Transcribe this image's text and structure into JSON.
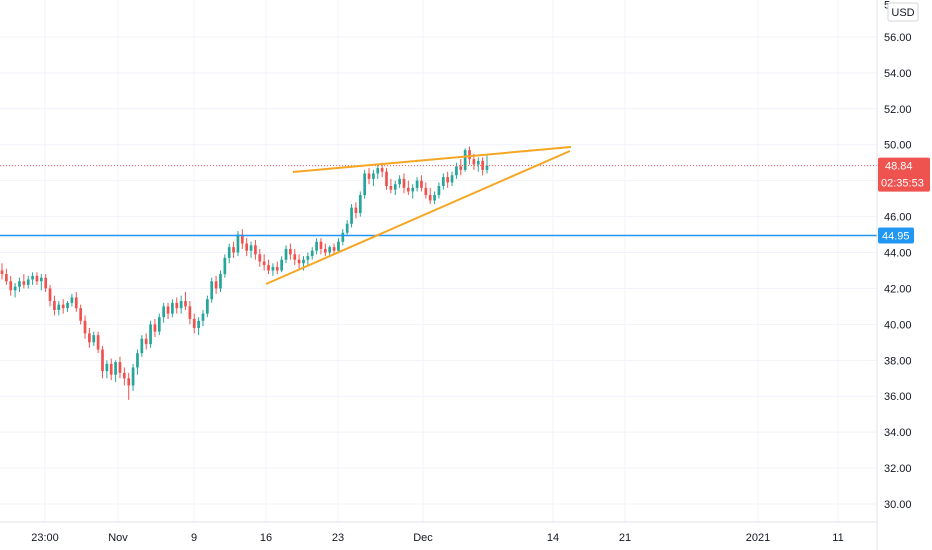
{
  "chart_data": {
    "type": "candlestick",
    "currency": "USD",
    "yaxis": {
      "min": 29,
      "max": 57.5,
      "ticks": [
        "56.00",
        "54.00",
        "52.00",
        "50.00",
        "48.00",
        "46.00",
        "44.00",
        "42.00",
        "40.00",
        "38.00",
        "36.00",
        "34.00",
        "32.00",
        "30.00"
      ],
      "top_partial_label": "5"
    },
    "xaxis": {
      "ticks": [
        "23:00",
        "Nov",
        "9",
        "16",
        "23",
        "Dec",
        "14",
        "21",
        "2021",
        "11"
      ]
    },
    "grid": true,
    "last_price": "48.84",
    "countdown": "02:35:53",
    "horizontal_level": "44.95",
    "colors": {
      "up": "#26a69a",
      "down": "#ef5350",
      "level_line": "#2196f3",
      "level_badge": "#2196f3",
      "price_badge": "#ef5350",
      "trendline": "#f5a623",
      "grid": "#f0f3fa"
    },
    "candles": [
      {
        "o": 43.0,
        "h": 43.4,
        "l": 42.5,
        "c": 42.8
      },
      {
        "o": 42.8,
        "h": 43.1,
        "l": 42.2,
        "c": 42.4
      },
      {
        "o": 42.4,
        "h": 42.7,
        "l": 41.6,
        "c": 41.9
      },
      {
        "o": 41.9,
        "h": 42.3,
        "l": 41.5,
        "c": 42.1
      },
      {
        "o": 42.1,
        "h": 42.6,
        "l": 41.8,
        "c": 42.4
      },
      {
        "o": 42.4,
        "h": 42.8,
        "l": 42.0,
        "c": 42.2
      },
      {
        "o": 42.2,
        "h": 42.7,
        "l": 42.0,
        "c": 42.5
      },
      {
        "o": 42.5,
        "h": 42.9,
        "l": 42.2,
        "c": 42.7
      },
      {
        "o": 42.7,
        "h": 42.9,
        "l": 42.2,
        "c": 42.4
      },
      {
        "o": 42.4,
        "h": 42.8,
        "l": 41.9,
        "c": 42.6
      },
      {
        "o": 42.6,
        "h": 42.8,
        "l": 41.8,
        "c": 42.0
      },
      {
        "o": 42.0,
        "h": 42.2,
        "l": 41.0,
        "c": 41.3
      },
      {
        "o": 41.3,
        "h": 41.6,
        "l": 40.5,
        "c": 40.8
      },
      {
        "o": 40.8,
        "h": 41.3,
        "l": 40.5,
        "c": 41.1
      },
      {
        "o": 41.1,
        "h": 41.4,
        "l": 40.6,
        "c": 40.9
      },
      {
        "o": 40.9,
        "h": 41.3,
        "l": 40.7,
        "c": 41.2
      },
      {
        "o": 41.2,
        "h": 41.7,
        "l": 41.0,
        "c": 41.5
      },
      {
        "o": 41.5,
        "h": 41.8,
        "l": 40.7,
        "c": 40.9
      },
      {
        "o": 40.9,
        "h": 41.1,
        "l": 40.0,
        "c": 40.2
      },
      {
        "o": 40.2,
        "h": 40.5,
        "l": 39.2,
        "c": 39.5
      },
      {
        "o": 39.5,
        "h": 39.8,
        "l": 38.7,
        "c": 39.0
      },
      {
        "o": 39.0,
        "h": 39.6,
        "l": 38.8,
        "c": 39.4
      },
      {
        "o": 39.4,
        "h": 39.6,
        "l": 38.4,
        "c": 38.6
      },
      {
        "o": 38.6,
        "h": 38.8,
        "l": 37.0,
        "c": 37.4
      },
      {
        "o": 37.4,
        "h": 38.0,
        "l": 37.0,
        "c": 37.8
      },
      {
        "o": 37.8,
        "h": 38.1,
        "l": 36.9,
        "c": 37.2
      },
      {
        "o": 37.2,
        "h": 38.0,
        "l": 36.8,
        "c": 37.9
      },
      {
        "o": 37.9,
        "h": 38.2,
        "l": 37.0,
        "c": 37.3
      },
      {
        "o": 37.3,
        "h": 37.6,
        "l": 36.6,
        "c": 37.0
      },
      {
        "o": 37.0,
        "h": 37.3,
        "l": 35.8,
        "c": 36.6
      },
      {
        "o": 36.6,
        "h": 37.8,
        "l": 36.3,
        "c": 37.6
      },
      {
        "o": 37.6,
        "h": 38.6,
        "l": 37.2,
        "c": 38.4
      },
      {
        "o": 38.4,
        "h": 39.4,
        "l": 38.2,
        "c": 39.2
      },
      {
        "o": 39.2,
        "h": 39.5,
        "l": 38.6,
        "c": 38.9
      },
      {
        "o": 38.9,
        "h": 40.2,
        "l": 38.7,
        "c": 40.0
      },
      {
        "o": 40.0,
        "h": 40.3,
        "l": 39.3,
        "c": 39.6
      },
      {
        "o": 39.6,
        "h": 40.6,
        "l": 39.4,
        "c": 40.4
      },
      {
        "o": 40.4,
        "h": 41.2,
        "l": 40.1,
        "c": 41.0
      },
      {
        "o": 41.0,
        "h": 41.2,
        "l": 40.3,
        "c": 40.6
      },
      {
        "o": 40.6,
        "h": 41.4,
        "l": 40.4,
        "c": 41.2
      },
      {
        "o": 41.2,
        "h": 41.5,
        "l": 40.6,
        "c": 40.9
      },
      {
        "o": 40.9,
        "h": 41.6,
        "l": 40.6,
        "c": 41.3
      },
      {
        "o": 41.3,
        "h": 41.8,
        "l": 40.8,
        "c": 41.0
      },
      {
        "o": 41.0,
        "h": 41.3,
        "l": 40.0,
        "c": 40.3
      },
      {
        "o": 40.3,
        "h": 40.6,
        "l": 39.5,
        "c": 39.8
      },
      {
        "o": 39.8,
        "h": 40.4,
        "l": 39.4,
        "c": 40.2
      },
      {
        "o": 40.2,
        "h": 40.8,
        "l": 39.9,
        "c": 40.6
      },
      {
        "o": 40.6,
        "h": 41.6,
        "l": 40.4,
        "c": 41.4
      },
      {
        "o": 41.4,
        "h": 42.6,
        "l": 41.2,
        "c": 42.4
      },
      {
        "o": 42.4,
        "h": 42.7,
        "l": 41.7,
        "c": 42.0
      },
      {
        "o": 42.0,
        "h": 43.0,
        "l": 41.8,
        "c": 42.8
      },
      {
        "o": 42.8,
        "h": 43.9,
        "l": 42.6,
        "c": 43.7
      },
      {
        "o": 43.7,
        "h": 44.5,
        "l": 43.4,
        "c": 44.3
      },
      {
        "o": 44.3,
        "h": 44.6,
        "l": 43.7,
        "c": 44.0
      },
      {
        "o": 44.0,
        "h": 45.2,
        "l": 43.8,
        "c": 45.0
      },
      {
        "o": 45.0,
        "h": 45.3,
        "l": 44.2,
        "c": 44.5
      },
      {
        "o": 44.5,
        "h": 44.8,
        "l": 43.8,
        "c": 44.1
      },
      {
        "o": 44.1,
        "h": 44.6,
        "l": 43.7,
        "c": 44.4
      },
      {
        "o": 44.4,
        "h": 44.7,
        "l": 43.6,
        "c": 43.9
      },
      {
        "o": 43.9,
        "h": 44.2,
        "l": 43.2,
        "c": 43.5
      },
      {
        "o": 43.5,
        "h": 43.9,
        "l": 43.0,
        "c": 43.3
      },
      {
        "o": 43.3,
        "h": 43.6,
        "l": 42.8,
        "c": 43.0
      },
      {
        "o": 43.0,
        "h": 43.4,
        "l": 42.7,
        "c": 43.2
      },
      {
        "o": 43.2,
        "h": 43.5,
        "l": 42.8,
        "c": 43.0
      },
      {
        "o": 43.0,
        "h": 43.8,
        "l": 42.9,
        "c": 43.6
      },
      {
        "o": 43.6,
        "h": 44.4,
        "l": 43.4,
        "c": 44.2
      },
      {
        "o": 44.2,
        "h": 44.5,
        "l": 43.6,
        "c": 43.9
      },
      {
        "o": 43.9,
        "h": 44.2,
        "l": 43.3,
        "c": 43.6
      },
      {
        "o": 43.6,
        "h": 43.9,
        "l": 43.1,
        "c": 43.4
      },
      {
        "o": 43.4,
        "h": 43.8,
        "l": 43.0,
        "c": 43.6
      },
      {
        "o": 43.6,
        "h": 44.0,
        "l": 43.3,
        "c": 43.8
      },
      {
        "o": 43.8,
        "h": 44.3,
        "l": 43.6,
        "c": 44.1
      },
      {
        "o": 44.1,
        "h": 44.8,
        "l": 43.9,
        "c": 44.6
      },
      {
        "o": 44.6,
        "h": 44.8,
        "l": 43.9,
        "c": 44.2
      },
      {
        "o": 44.2,
        "h": 44.5,
        "l": 43.8,
        "c": 44.0
      },
      {
        "o": 44.0,
        "h": 44.4,
        "l": 43.8,
        "c": 44.3
      },
      {
        "o": 44.3,
        "h": 44.5,
        "l": 43.9,
        "c": 44.1
      },
      {
        "o": 44.1,
        "h": 44.8,
        "l": 44.0,
        "c": 44.6
      },
      {
        "o": 44.6,
        "h": 45.3,
        "l": 44.4,
        "c": 45.1
      },
      {
        "o": 45.1,
        "h": 45.8,
        "l": 44.9,
        "c": 45.6
      },
      {
        "o": 45.6,
        "h": 46.7,
        "l": 45.4,
        "c": 46.5
      },
      {
        "o": 46.5,
        "h": 46.8,
        "l": 45.9,
        "c": 46.2
      },
      {
        "o": 46.2,
        "h": 47.4,
        "l": 46.0,
        "c": 47.2
      },
      {
        "o": 47.2,
        "h": 48.6,
        "l": 47.0,
        "c": 48.4
      },
      {
        "o": 48.4,
        "h": 48.7,
        "l": 47.8,
        "c": 48.1
      },
      {
        "o": 48.1,
        "h": 48.6,
        "l": 47.7,
        "c": 48.4
      },
      {
        "o": 48.4,
        "h": 48.9,
        "l": 48.1,
        "c": 48.7
      },
      {
        "o": 48.7,
        "h": 49.0,
        "l": 48.2,
        "c": 48.5
      },
      {
        "o": 48.5,
        "h": 48.7,
        "l": 47.5,
        "c": 47.7
      },
      {
        "o": 47.7,
        "h": 48.1,
        "l": 47.3,
        "c": 47.5
      },
      {
        "o": 47.5,
        "h": 48.0,
        "l": 47.2,
        "c": 47.8
      },
      {
        "o": 47.8,
        "h": 48.3,
        "l": 47.6,
        "c": 48.1
      },
      {
        "o": 48.1,
        "h": 48.4,
        "l": 47.3,
        "c": 47.6
      },
      {
        "o": 47.6,
        "h": 48.0,
        "l": 47.2,
        "c": 47.4
      },
      {
        "o": 47.4,
        "h": 47.8,
        "l": 47.0,
        "c": 47.6
      },
      {
        "o": 47.6,
        "h": 48.2,
        "l": 47.4,
        "c": 48.0
      },
      {
        "o": 48.0,
        "h": 48.3,
        "l": 47.4,
        "c": 47.6
      },
      {
        "o": 47.6,
        "h": 47.9,
        "l": 47.0,
        "c": 47.2
      },
      {
        "o": 47.2,
        "h": 47.6,
        "l": 46.7,
        "c": 46.9
      },
      {
        "o": 46.9,
        "h": 47.4,
        "l": 46.7,
        "c": 47.2
      },
      {
        "o": 47.2,
        "h": 47.9,
        "l": 47.0,
        "c": 47.7
      },
      {
        "o": 47.7,
        "h": 48.4,
        "l": 47.5,
        "c": 48.2
      },
      {
        "o": 48.2,
        "h": 48.5,
        "l": 47.6,
        "c": 47.9
      },
      {
        "o": 47.9,
        "h": 48.5,
        "l": 47.7,
        "c": 48.3
      },
      {
        "o": 48.3,
        "h": 49.0,
        "l": 48.1,
        "c": 48.8
      },
      {
        "o": 48.8,
        "h": 49.2,
        "l": 48.3,
        "c": 48.6
      },
      {
        "o": 48.6,
        "h": 49.8,
        "l": 48.5,
        "c": 49.7
      },
      {
        "o": 49.7,
        "h": 49.9,
        "l": 48.9,
        "c": 49.2
      },
      {
        "o": 49.2,
        "h": 49.5,
        "l": 48.6,
        "c": 48.9
      },
      {
        "o": 48.9,
        "h": 49.3,
        "l": 48.5,
        "c": 49.1
      },
      {
        "o": 49.1,
        "h": 49.3,
        "l": 48.3,
        "c": 48.6
      },
      {
        "o": 48.6,
        "h": 49.4,
        "l": 48.4,
        "c": 48.84
      }
    ]
  }
}
